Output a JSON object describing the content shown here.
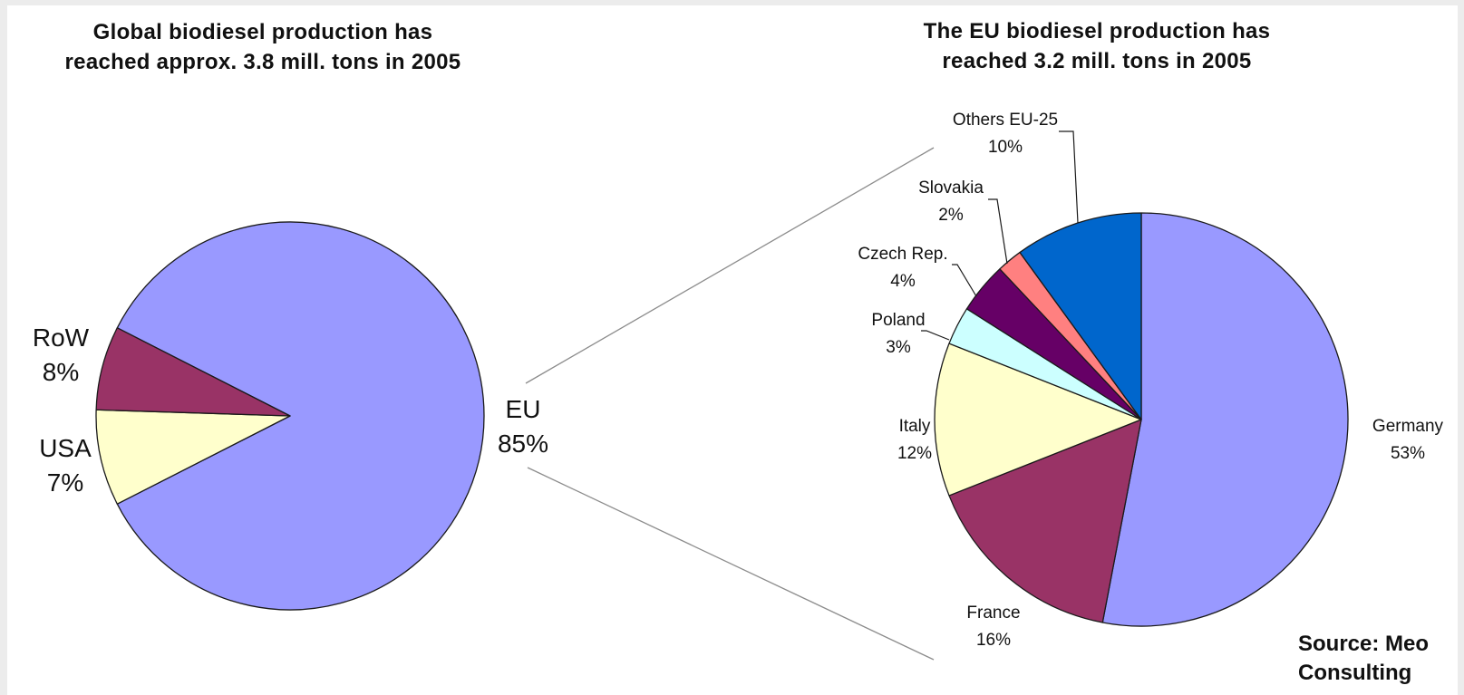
{
  "chart_data": [
    {
      "type": "pie",
      "title_lines": [
        "Global biodiesel production has",
        "reached approx. 3.8 mill. tons in 2005"
      ],
      "slices": [
        {
          "label": "EU",
          "percent_label": "85%",
          "value": 85,
          "color": "#9999ff"
        },
        {
          "label": "RoW",
          "percent_label": "8%",
          "value": 8,
          "color": "#ffffcc"
        },
        {
          "label": "USA",
          "percent_label": "7%",
          "value": 7,
          "color": "#993366"
        }
      ]
    },
    {
      "type": "pie",
      "title_lines": [
        "The EU biodiesel production has",
        "reached 3.2 mill. tons in 2005"
      ],
      "slices": [
        {
          "label": "Germany",
          "percent_label": "53%",
          "value": 53,
          "color": "#9999ff"
        },
        {
          "label": "France",
          "percent_label": "16%",
          "value": 16,
          "color": "#993366"
        },
        {
          "label": "Italy",
          "percent_label": "12%",
          "value": 12,
          "color": "#ffffcc"
        },
        {
          "label": "Poland",
          "percent_label": "3%",
          "value": 3,
          "color": "#ccffff"
        },
        {
          "label": "Czech Rep.",
          "percent_label": "4%",
          "value": 4,
          "color": "#660066"
        },
        {
          "label": "Slovakia",
          "percent_label": "2%",
          "value": 2,
          "color": "#ff8080"
        },
        {
          "label": "Others EU-25",
          "percent_label": "10%",
          "value": 10,
          "color": "#0066cc"
        }
      ]
    }
  ],
  "source_lines": [
    "Source: Meo",
    "Consulting"
  ]
}
